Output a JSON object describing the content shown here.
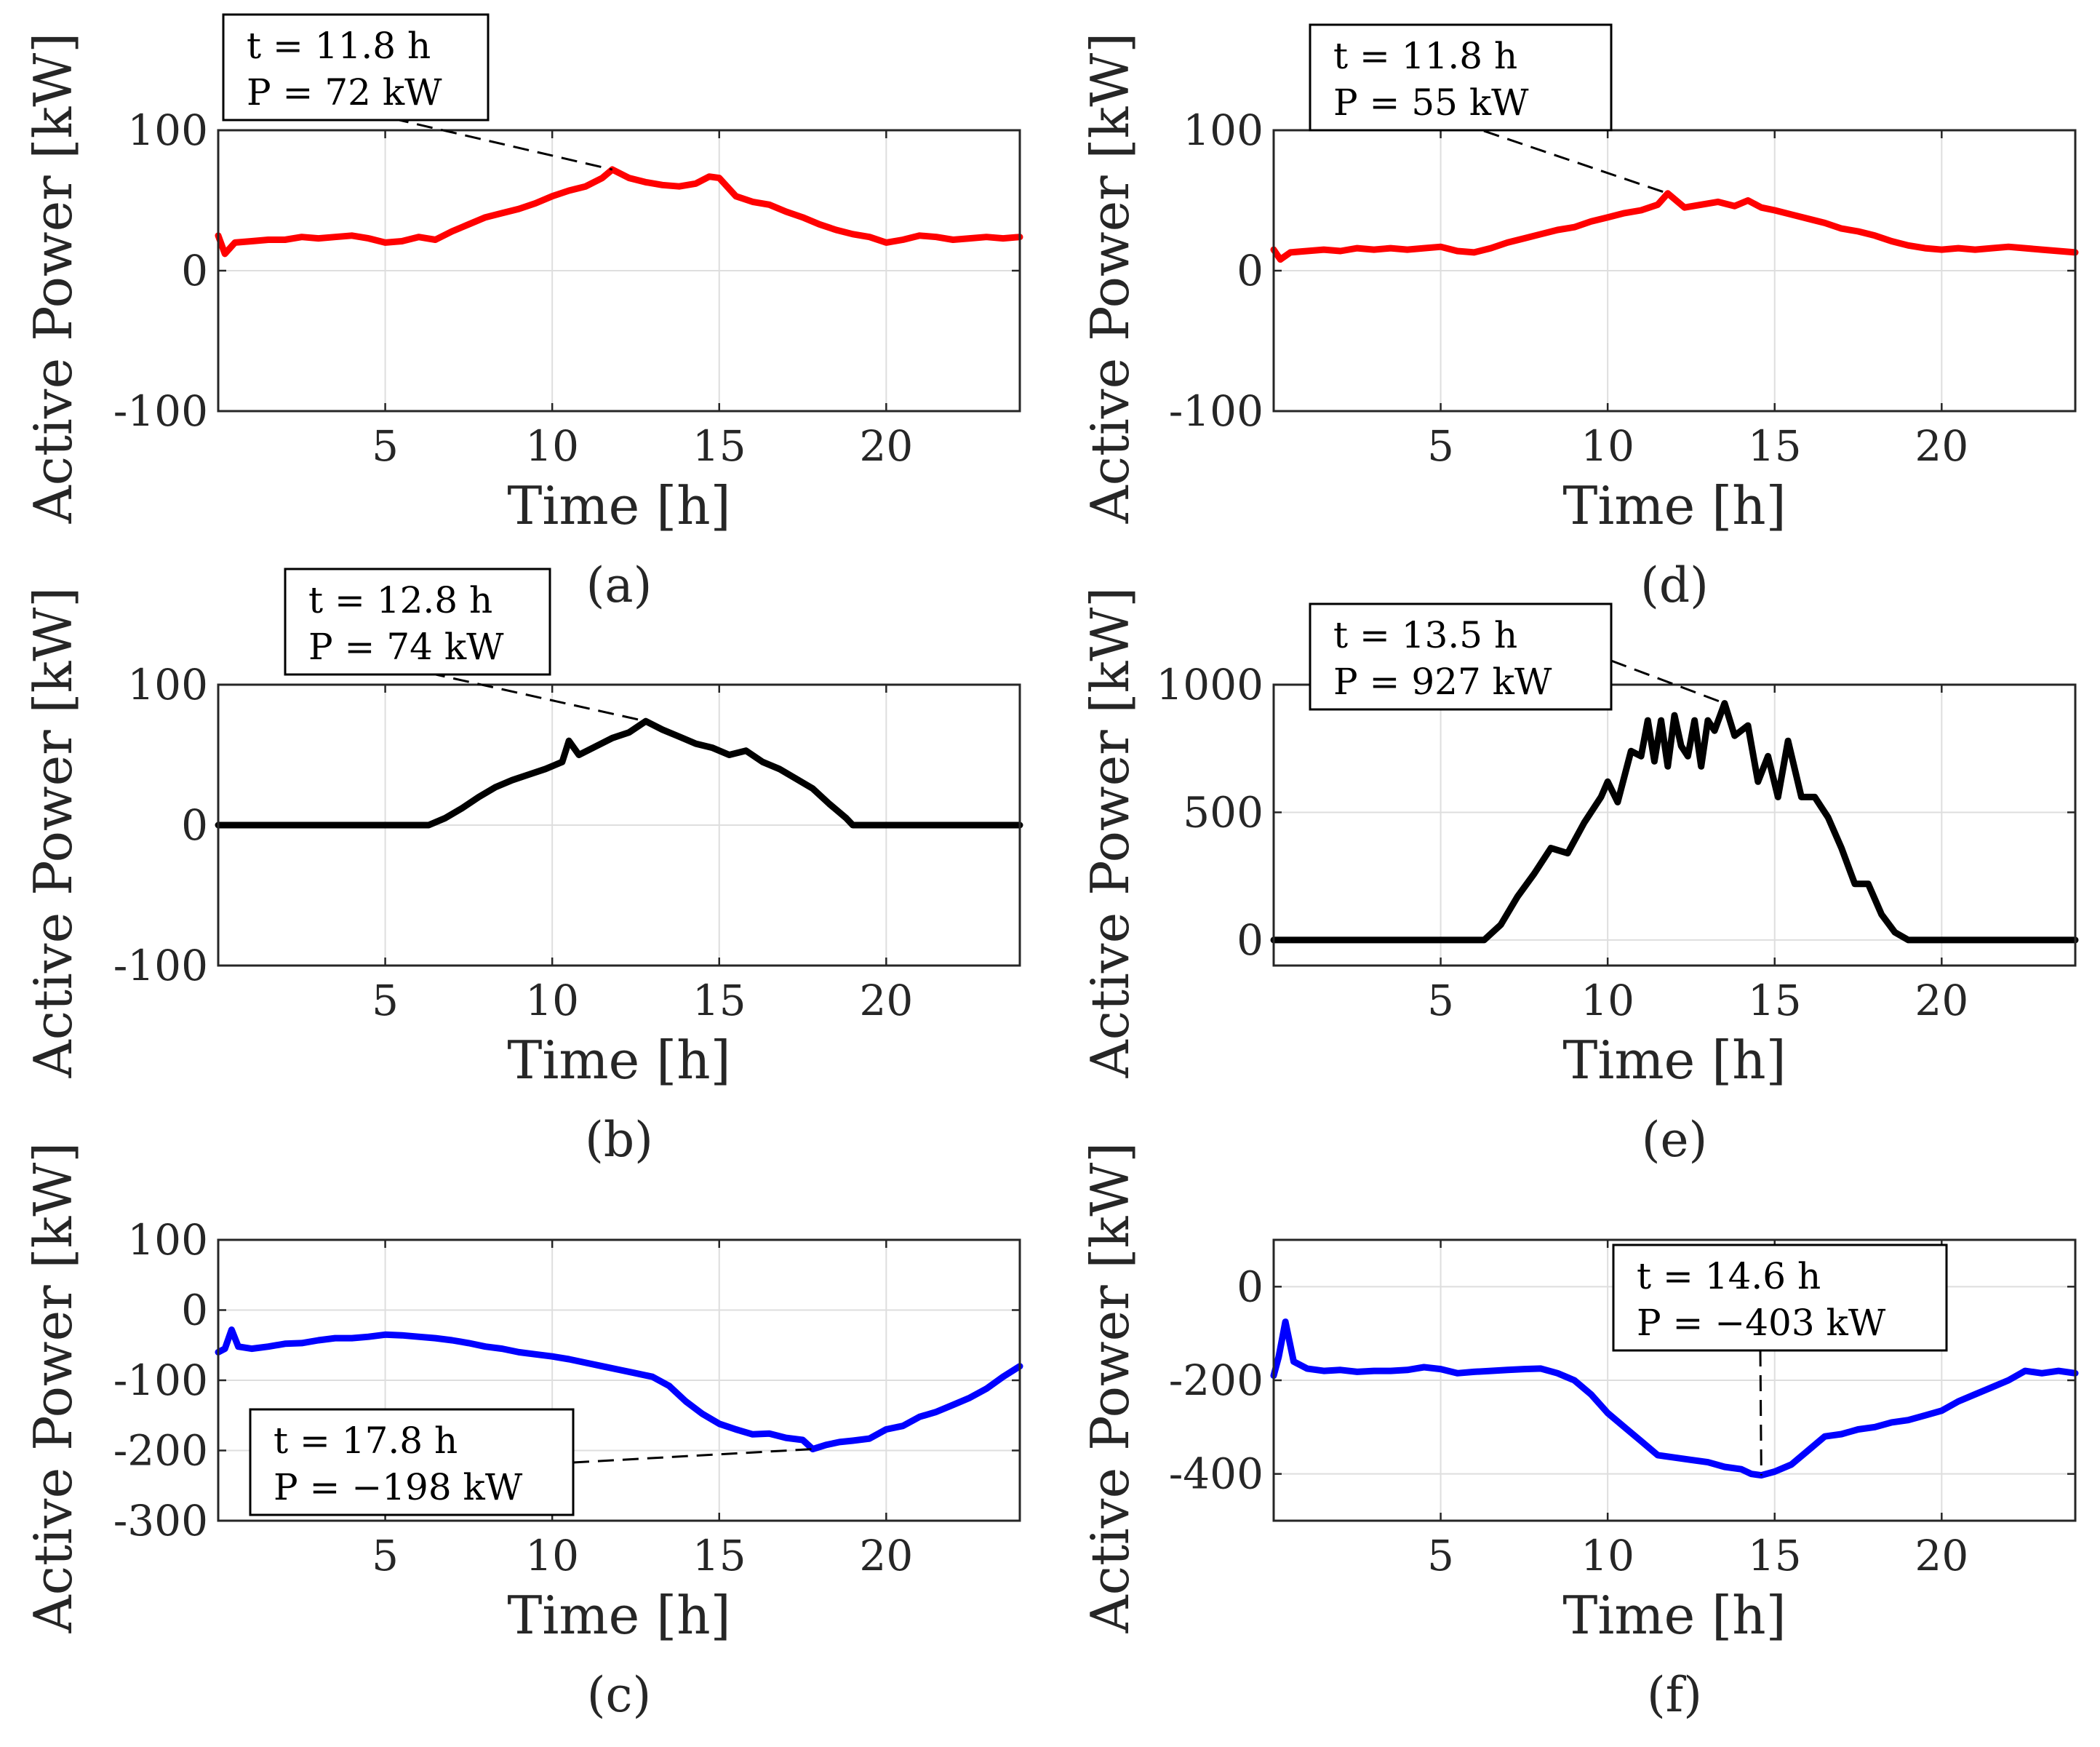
{
  "chart_data": [
    {
      "id": "a",
      "type": "line",
      "caption": "(a)",
      "xlabel": "Time [h]",
      "ylabel": "Active Power [kW]",
      "xlim": [
        0,
        24
      ],
      "ylim": [
        -100,
        100
      ],
      "xticks": [
        5,
        10,
        15,
        20
      ],
      "xtick_labels": [
        "5",
        "10",
        "15",
        "20"
      ],
      "yticks": [
        -100,
        0,
        100
      ],
      "ytick_labels": [
        "-100",
        "0",
        "100"
      ],
      "grid": true,
      "color": "#ff0000",
      "series": [
        {
          "name": "P",
          "x": [
            0,
            0.2,
            0.5,
            1,
            1.5,
            2,
            2.5,
            3,
            3.5,
            4,
            4.5,
            5,
            5.5,
            6,
            6.5,
            7,
            7.5,
            8,
            8.5,
            9,
            9.5,
            10,
            10.5,
            11,
            11.5,
            11.8,
            12.3,
            12.8,
            13.3,
            13.8,
            14.3,
            14.7,
            15,
            15.5,
            16,
            16.5,
            17,
            17.5,
            18,
            18.5,
            19,
            19.5,
            20,
            20.5,
            21,
            21.5,
            22,
            22.5,
            23,
            23.5,
            24
          ],
          "y": [
            25,
            12,
            20,
            21,
            22,
            22,
            24,
            23,
            24,
            25,
            23,
            20,
            21,
            24,
            22,
            28,
            33,
            38,
            41,
            44,
            48,
            53,
            57,
            60,
            66,
            72,
            66,
            63,
            61,
            60,
            62,
            67,
            66,
            53,
            49,
            47,
            42,
            38,
            33,
            29,
            26,
            24,
            20,
            22,
            25,
            24,
            22,
            23,
            24,
            23,
            24
          ]
        }
      ],
      "annotation": {
        "lines": [
          "t = 11.8 h",
          "P = 72 kW"
        ],
        "x": 11.8,
        "y": 72
      }
    },
    {
      "id": "b",
      "type": "line",
      "caption": "(b)",
      "xlabel": "Time [h]",
      "ylabel": "Active Power [kW]",
      "xlim": [
        0,
        24
      ],
      "ylim": [
        -100,
        100
      ],
      "xticks": [
        5,
        10,
        15,
        20
      ],
      "xtick_labels": [
        "5",
        "10",
        "15",
        "20"
      ],
      "yticks": [
        -100,
        0,
        100
      ],
      "ytick_labels": [
        "-100",
        "0",
        "100"
      ],
      "grid": true,
      "color": "#000000",
      "series": [
        {
          "name": "P",
          "x": [
            0,
            1,
            2,
            3,
            4,
            5,
            6,
            6.3,
            6.8,
            7.3,
            7.8,
            8.3,
            8.8,
            9.3,
            9.8,
            10.3,
            10.5,
            10.8,
            11.3,
            11.8,
            12.3,
            12.8,
            13.3,
            13.8,
            14.3,
            14.8,
            15.3,
            15.8,
            16.3,
            16.8,
            17.3,
            17.8,
            18.3,
            18.8,
            19,
            20,
            21,
            22,
            23,
            24
          ],
          "y": [
            0,
            0,
            0,
            0,
            0,
            0,
            0,
            0,
            5,
            12,
            20,
            27,
            32,
            36,
            40,
            45,
            60,
            50,
            56,
            62,
            66,
            74,
            68,
            63,
            58,
            55,
            50,
            53,
            45,
            40,
            33,
            26,
            15,
            5,
            0,
            0,
            0,
            0,
            0,
            0
          ]
        }
      ],
      "annotation": {
        "lines": [
          "t = 12.8 h",
          "P = 74 kW"
        ],
        "x": 12.8,
        "y": 74
      }
    },
    {
      "id": "c",
      "type": "line",
      "caption": "(c)",
      "xlabel": "Time [h]",
      "ylabel": "Active Power [kW]",
      "xlim": [
        0,
        24
      ],
      "ylim": [
        -300,
        100
      ],
      "xticks": [
        5,
        10,
        15,
        20
      ],
      "xtick_labels": [
        "5",
        "10",
        "15",
        "20"
      ],
      "yticks": [
        -300,
        -200,
        -100,
        0,
        100
      ],
      "ytick_labels": [
        "-300",
        "-200",
        "-100",
        "0",
        "100"
      ],
      "grid": true,
      "color": "#0000ff",
      "series": [
        {
          "name": "P",
          "x": [
            0,
            0.2,
            0.4,
            0.6,
            1,
            1.5,
            2,
            2.5,
            3,
            3.5,
            4,
            4.5,
            5,
            5.5,
            6,
            6.5,
            7,
            7.5,
            8,
            8.5,
            9,
            9.5,
            10,
            10.5,
            11,
            11.5,
            12,
            12.5,
            13,
            13.5,
            14,
            14.5,
            15,
            15.5,
            16,
            16.5,
            17,
            17.5,
            17.8,
            18.2,
            18.6,
            19,
            19.5,
            20,
            20.5,
            21,
            21.5,
            22,
            22.5,
            23,
            23.5,
            24
          ],
          "y": [
            -60,
            -55,
            -28,
            -52,
            -55,
            -52,
            -48,
            -47,
            -43,
            -40,
            -40,
            -38,
            -35,
            -36,
            -38,
            -40,
            -43,
            -47,
            -52,
            -55,
            -60,
            -63,
            -66,
            -70,
            -75,
            -80,
            -85,
            -90,
            -95,
            -108,
            -130,
            -148,
            -162,
            -170,
            -177,
            -176,
            -182,
            -185,
            -198,
            -192,
            -188,
            -186,
            -183,
            -170,
            -165,
            -152,
            -145,
            -135,
            -125,
            -112,
            -95,
            -80
          ]
        }
      ],
      "annotation": {
        "lines": [
          "t = 17.8 h",
          "P = −198 kW"
        ],
        "x": 17.8,
        "y": -198
      }
    },
    {
      "id": "d",
      "type": "line",
      "caption": "(d)",
      "xlabel": "Time [h]",
      "ylabel": "Active Power [kW]",
      "xlim": [
        0,
        24
      ],
      "ylim": [
        -100,
        100
      ],
      "xticks": [
        5,
        10,
        15,
        20
      ],
      "xtick_labels": [
        "5",
        "10",
        "15",
        "20"
      ],
      "yticks": [
        -100,
        0,
        100
      ],
      "ytick_labels": [
        "-100",
        "0",
        "100"
      ],
      "grid": true,
      "color": "#ff0000",
      "series": [
        {
          "name": "P",
          "x": [
            0,
            0.2,
            0.5,
            1,
            1.5,
            2,
            2.5,
            3,
            3.5,
            4,
            4.5,
            5,
            5.5,
            6,
            6.5,
            7,
            7.5,
            8,
            8.5,
            9,
            9.5,
            10,
            10.5,
            11,
            11.5,
            11.8,
            12.3,
            12.8,
            13.3,
            13.8,
            14.2,
            14.6,
            15,
            15.5,
            16,
            16.5,
            17,
            17.5,
            18,
            18.5,
            19,
            19.5,
            20,
            20.5,
            21,
            21.5,
            22,
            22.5,
            23,
            23.5,
            24
          ],
          "y": [
            15,
            8,
            13,
            14,
            15,
            14,
            16,
            15,
            16,
            15,
            16,
            17,
            14,
            13,
            16,
            20,
            23,
            26,
            29,
            31,
            35,
            38,
            41,
            43,
            47,
            55,
            45,
            47,
            49,
            46,
            50,
            45,
            43,
            40,
            37,
            34,
            30,
            28,
            25,
            21,
            18,
            16,
            15,
            16,
            15,
            16,
            17,
            16,
            15,
            14,
            13
          ]
        }
      ],
      "annotation": {
        "lines": [
          "t = 11.8 h",
          "P = 55 kW"
        ],
        "x": 11.8,
        "y": 55
      }
    },
    {
      "id": "e",
      "type": "line",
      "caption": "(e)",
      "xlabel": "Time [h]",
      "ylabel": "Active Power [kW]",
      "xlim": [
        0,
        24
      ],
      "ylim": [
        -100,
        1000
      ],
      "xticks": [
        5,
        10,
        15,
        20
      ],
      "xtick_labels": [
        "5",
        "10",
        "15",
        "20"
      ],
      "yticks": [
        0,
        500,
        1000
      ],
      "ytick_labels": [
        "0",
        "500",
        "1000"
      ],
      "grid": true,
      "color": "#000000",
      "series": [
        {
          "name": "P",
          "x": [
            0,
            1,
            2,
            3,
            4,
            5,
            6,
            6.3,
            6.8,
            7.3,
            7.8,
            8.3,
            8.8,
            9.3,
            9.8,
            10,
            10.3,
            10.7,
            11,
            11.2,
            11.4,
            11.6,
            11.8,
            12,
            12.2,
            12.4,
            12.6,
            12.8,
            13,
            13.2,
            13.5,
            13.8,
            14.2,
            14.5,
            14.8,
            15.1,
            15.4,
            15.8,
            16.2,
            16.6,
            17,
            17.4,
            17.8,
            18.2,
            18.6,
            19,
            20,
            21,
            22,
            23,
            24
          ],
          "y": [
            0,
            0,
            0,
            0,
            0,
            0,
            0,
            0,
            60,
            170,
            260,
            360,
            340,
            460,
            560,
            620,
            540,
            740,
            720,
            860,
            700,
            860,
            680,
            880,
            760,
            720,
            860,
            680,
            860,
            820,
            927,
            800,
            840,
            620,
            720,
            560,
            780,
            560,
            560,
            480,
            360,
            220,
            220,
            100,
            30,
            0,
            0,
            0,
            0,
            0,
            0
          ]
        }
      ],
      "annotation": {
        "lines": [
          "t = 13.5 h",
          "P = 927 kW"
        ],
        "x": 13.5,
        "y": 927
      }
    },
    {
      "id": "f",
      "type": "line",
      "caption": "(f)",
      "xlabel": "Time [h]",
      "ylabel": "Active Power [kW]",
      "xlim": [
        0,
        24
      ],
      "ylim": [
        -500,
        100
      ],
      "xticks": [
        5,
        10,
        15,
        20
      ],
      "xtick_labels": [
        "5",
        "10",
        "15",
        "20"
      ],
      "yticks": [
        -400,
        -200,
        0
      ],
      "ytick_labels": [
        "-400",
        "-200",
        "0"
      ],
      "grid": true,
      "color": "#0000ff",
      "series": [
        {
          "name": "P",
          "x": [
            0,
            0.15,
            0.35,
            0.6,
            1,
            1.5,
            2,
            2.5,
            3,
            3.5,
            4,
            4.5,
            5,
            5.5,
            6,
            6.5,
            7,
            7.5,
            8,
            8.5,
            9,
            9.5,
            10,
            10.5,
            11,
            11.5,
            12,
            12.5,
            13,
            13.5,
            14,
            14.3,
            14.6,
            15,
            15.5,
            16,
            16.5,
            17,
            17.5,
            18,
            18.5,
            19,
            19.5,
            20,
            20.5,
            21,
            21.5,
            22,
            22.5,
            23,
            23.5,
            24
          ],
          "y": [
            -190,
            -150,
            -75,
            -160,
            -175,
            -180,
            -178,
            -182,
            -180,
            -180,
            -178,
            -172,
            -176,
            -185,
            -182,
            -180,
            -178,
            -176,
            -175,
            -185,
            -200,
            -230,
            -270,
            -300,
            -330,
            -360,
            -365,
            -370,
            -375,
            -385,
            -390,
            -400,
            -403,
            -395,
            -380,
            -350,
            -320,
            -315,
            -305,
            -300,
            -290,
            -285,
            -275,
            -265,
            -245,
            -230,
            -215,
            -200,
            -180,
            -185,
            -180,
            -185
          ]
        }
      ],
      "annotation": {
        "lines": [
          "t = 14.6 h",
          "P = −403 kW"
        ],
        "x": 14.6,
        "y": -403
      }
    }
  ]
}
